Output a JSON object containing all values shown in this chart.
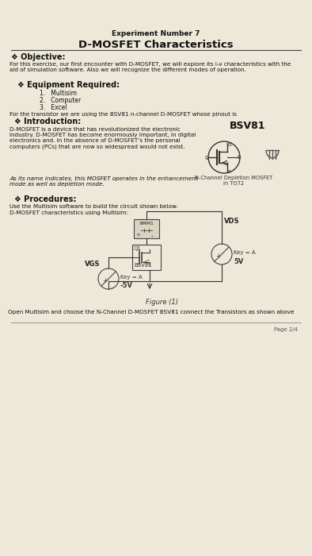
{
  "bg_color": "#ede8d8",
  "page_bg": "#ede8d8",
  "title_line1": "Experiment Number 7",
  "title_line2": "D-MOSFET Characteristics",
  "objective_header": "❖ Objective:",
  "objective_text": "For this exercise, our first encounter with D-MOSFET, we will explore its i-v characteristics with the\naid of simulation software. Also we will recognize the different modes of operation.",
  "equipment_header": "❖ Equipment Required:",
  "equipment_items": [
    "1.   Multisim",
    "2.   Computer",
    "3.   Excel"
  ],
  "equipment_note": "For the transistor we are using the BSV81 n-channel D-MOSFET whose pinout is",
  "intro_header": "❖ Introduction:",
  "intro_text1": "D-MOSFET is a device that has revolutionized the electronic\nindustry. D-MOSFET has become enormously important, in digital\nelectronics and. In the absence of D-MOSFET’s the personal\ncomputers (PCs) that are now so widespread would not exist.",
  "intro_text2": "As its name indicates, this MOSFET operates in the enhancement\nmode as well as depletion mode.",
  "bsv81_label": "BSV81",
  "transistor_caption": "N-Channel Depletion MOSFET\nin TO72",
  "procedures_header": "❖ Procedures:",
  "procedures_text1": "Use the Multisim software to build the circuit shown below.",
  "procedures_text2": "D-MOSFET characteristics using Multisim:",
  "figure_caption": "Figure (1)",
  "open_text": "Open Multisim and choose the N-Channel D-MOSFET BSV81 connect the Transistors as shown above",
  "page_num": "Page 2/4",
  "ammeter_label": "XMM1",
  "q1_label": "Q1",
  "bsv81_circuit_label": "BSV81",
  "vgs_label": "VGS",
  "vds_label": "VDS",
  "key_a_left": "Key = A",
  "key_a_right": "Key = A",
  "v_left": "-5V",
  "v_right": "5V"
}
